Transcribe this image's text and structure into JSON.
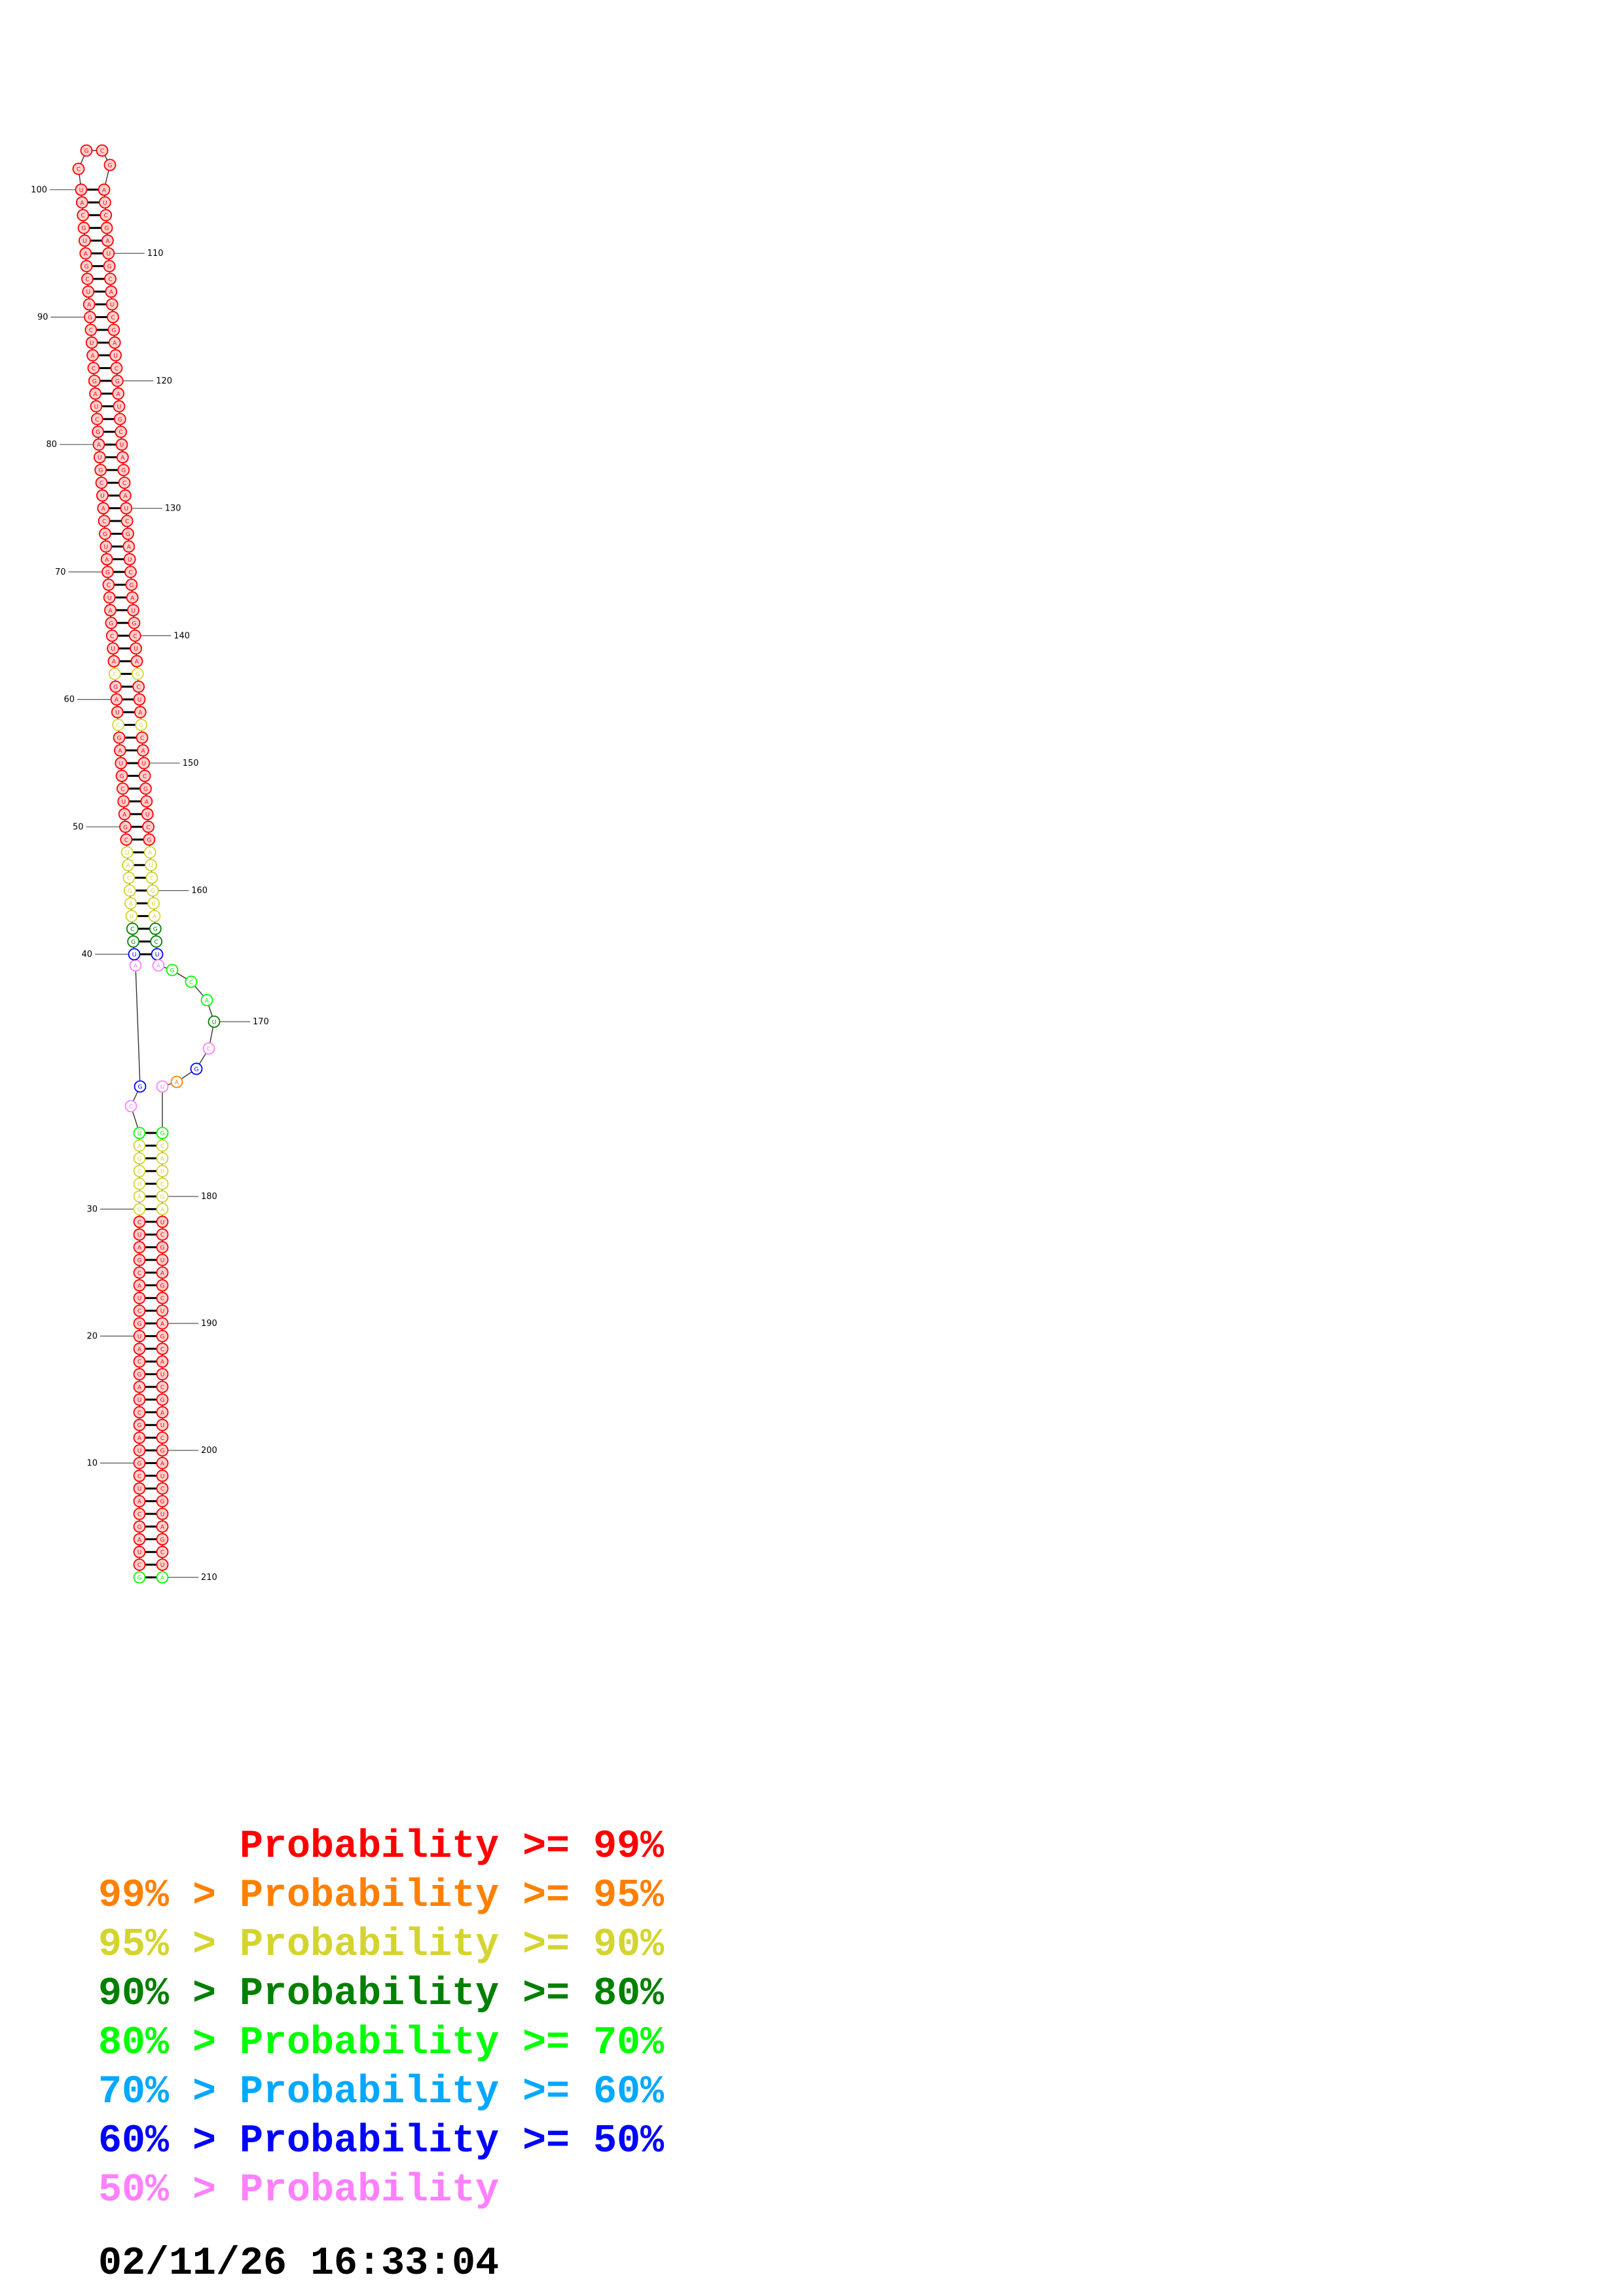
{
  "structure": {
    "sequence_length": 210,
    "position_labels": [
      "10",
      "20",
      "30",
      "40",
      "50",
      "60",
      "70",
      "80",
      "90",
      "100",
      "110",
      "120",
      "130",
      "140",
      "150",
      "160",
      "170",
      "180",
      "190",
      "200",
      "210"
    ],
    "stems": [
      {
        "name": "outer-stem",
        "five_prime": [
          1,
          36
        ],
        "three_prime": [
          175,
          210
        ]
      },
      {
        "name": "inner-stem",
        "five_prime": [
          40,
          100
        ],
        "three_prime": [
          105,
          165
        ]
      }
    ],
    "hairpin_loop": [
      101,
      102,
      103,
      104
    ],
    "internal_loop_5prime": [
      37,
      38,
      39
    ],
    "internal_loop_3prime": [
      166,
      167,
      168,
      169,
      170,
      171,
      172,
      173,
      174
    ]
  },
  "legend": {
    "colors": {
      "p99": "#ff0000",
      "p95": "#ff8000",
      "p90": "#d4d430",
      "p80": "#008000",
      "p70": "#00ff00",
      "p60": "#00a8ff",
      "p50": "#0000ff",
      "plow": "#ff80ff"
    },
    "lines": [
      {
        "text": "      Probability >= 99%",
        "color": "#ff0000"
      },
      {
        "text": "99% > Probability >= 95%",
        "color": "#ff8000"
      },
      {
        "text": "95% > Probability >= 90%",
        "color": "#d4d430"
      },
      {
        "text": "90% > Probability >= 80%",
        "color": "#008000"
      },
      {
        "text": "80% > Probability >= 70%",
        "color": "#00ff00"
      },
      {
        "text": "70% > Probability >= 60%",
        "color": "#00a8ff"
      },
      {
        "text": "60% > Probability >= 50%",
        "color": "#0000ff"
      },
      {
        "text": "50% > Probability",
        "color": "#ff80ff"
      }
    ]
  },
  "timestamp": "02/11/26 16:33:04"
}
